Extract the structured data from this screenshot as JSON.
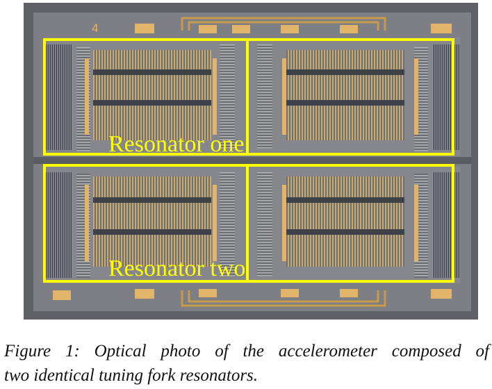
{
  "photo": {
    "chip_number": "4",
    "resonator_labels": [
      "Resonator one",
      "Resonator two"
    ],
    "highlight_color": "#ffff00",
    "chip_background_color": "#7d7f84",
    "pad_color": "#e2b46a"
  },
  "caption": {
    "line1": "Figure 1: Optical photo of the accelerometer composed of",
    "line2": "two identical tuning fork resonators."
  }
}
